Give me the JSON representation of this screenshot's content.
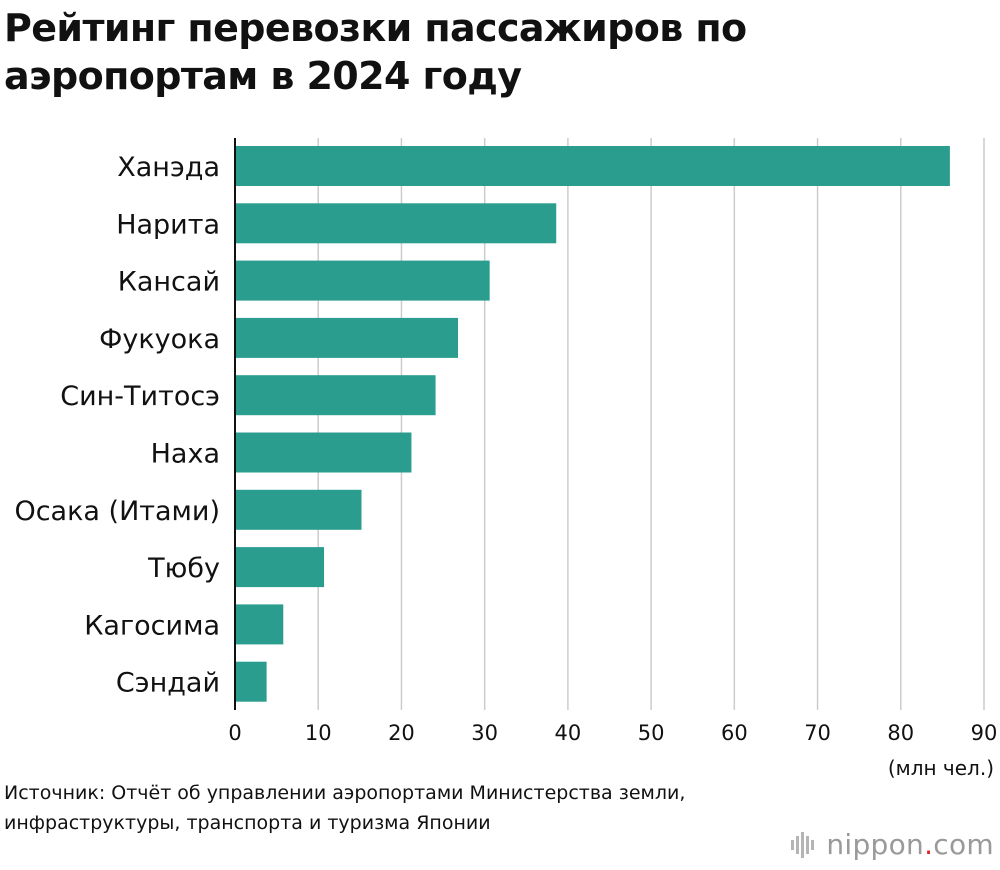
{
  "title": "Рейтинг перевозки пассажиров по аэропортам в 2024 году",
  "source": "Источник: Отчёт об управлении аэропортами Министерства земли, инфраструктуры, транспорта и туризма Японии",
  "logo": {
    "name": "nippon",
    "dot": ".",
    "suffix": "com"
  },
  "chart_data": {
    "type": "bar",
    "orientation": "horizontal",
    "categories": [
      "Ханэда",
      "Нарита",
      "Кансай",
      "Фукуока",
      "Син-Титосэ",
      "Наха",
      "Осака (Итами)",
      "Тюбу",
      "Кагосима",
      "Сэндай"
    ],
    "values": [
      85.9,
      38.6,
      30.6,
      26.8,
      24.1,
      21.2,
      15.2,
      10.7,
      5.8,
      3.8
    ],
    "xlim": [
      0,
      90
    ],
    "xticks": [
      0,
      10,
      20,
      30,
      40,
      50,
      60,
      70,
      80,
      90
    ],
    "xunit": "(млн чел.)",
    "grid": true,
    "bar_color": "#2a9d8f",
    "grid_color": "#cccccc"
  }
}
